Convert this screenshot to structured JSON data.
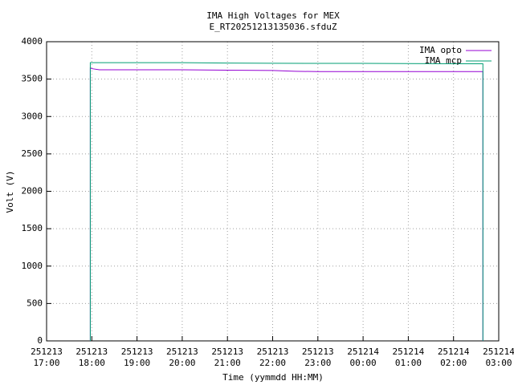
{
  "chart_data": {
    "type": "line",
    "title": "IMA High Voltages for MEX",
    "subtitle": "E_RT20251213135036.sfduZ",
    "xlabel": "Time (yymmdd HH:MM)",
    "ylabel": "Volt (V)",
    "xlim": [
      "251213 17:00",
      "251214 03:00"
    ],
    "xticks": [
      "251213 17:00",
      "251213 18:00",
      "251213 19:00",
      "251213 20:00",
      "251213 21:00",
      "251213 22:00",
      "251213 23:00",
      "251214 00:00",
      "251214 01:00",
      "251214 02:00",
      "251214 03:00"
    ],
    "ylim": [
      0,
      4000
    ],
    "yticks": [
      0,
      500,
      1000,
      1500,
      2000,
      2500,
      3000,
      3500,
      4000
    ],
    "grid": true,
    "legend": "top-right",
    "series": [
      {
        "name": "IMA opto",
        "color": "#9400d3",
        "x": [
          "251213 17:58",
          "251213 17:58",
          "251213 18:00",
          "251213 18:10",
          "251213 19:00",
          "251213 20:00",
          "251213 21:00",
          "251213 22:00",
          "251213 22:30",
          "251213 23:00",
          "251214 00:00",
          "251214 01:00",
          "251214 02:00",
          "251214 02:39",
          "251214 02:39"
        ],
        "values": [
          0,
          3650,
          3640,
          3625,
          3625,
          3625,
          3620,
          3615,
          3605,
          3600,
          3600,
          3600,
          3600,
          3600,
          0
        ]
      },
      {
        "name": "IMA mcp",
        "color": "#009e73",
        "x": [
          "251213 17:58",
          "251213 17:58",
          "251213 19:00",
          "251213 20:00",
          "251213 21:00",
          "251213 22:00",
          "251213 23:00",
          "251214 00:00",
          "251214 01:00",
          "251214 02:00",
          "251214 02:39",
          "251214 02:39"
        ],
        "values": [
          0,
          3720,
          3720,
          3720,
          3715,
          3712,
          3710,
          3710,
          3708,
          3705,
          3705,
          0
        ]
      }
    ]
  }
}
